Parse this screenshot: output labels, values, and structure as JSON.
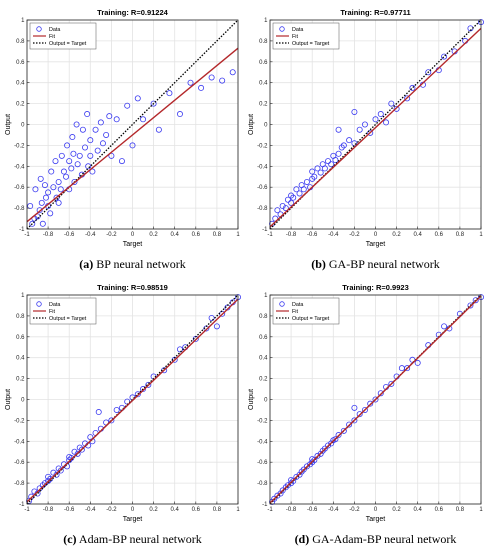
{
  "chart_data": [
    {
      "type": "scatter",
      "title": "Training: R=0.91224",
      "caption_letter": "(a)",
      "caption_text": " BP neural network",
      "xlabel": "Target",
      "ylabel": "Output",
      "xlim": [
        -1,
        1
      ],
      "ylim": [
        -1,
        1
      ],
      "xticks": [
        "-1",
        "-0.8",
        "-0.6",
        "-0.4",
        "-0.2",
        "0",
        "0.2",
        "0.4",
        "0.6",
        "0.8",
        "1"
      ],
      "yticks": [
        "-1",
        "-0.8",
        "-0.6",
        "-0.4",
        "-0.2",
        "0",
        "0.2",
        "0.4",
        "0.6",
        "0.8",
        "1"
      ],
      "grid": true,
      "legend_position": "top-left",
      "legend": [
        "Data",
        "Fit",
        "Output = Target"
      ],
      "fit": {
        "slope": 0.83,
        "intercept": -0.1
      },
      "points": [
        [
          -0.95,
          -0.95
        ],
        [
          -0.93,
          -0.9
        ],
        [
          -0.9,
          -0.88
        ],
        [
          -0.88,
          -0.82
        ],
        [
          -0.86,
          -0.75
        ],
        [
          -0.85,
          -0.95
        ],
        [
          -0.82,
          -0.7
        ],
        [
          -0.8,
          -0.78
        ],
        [
          -0.8,
          -0.65
        ],
        [
          -0.78,
          -0.85
        ],
        [
          -0.75,
          -0.6
        ],
        [
          -0.72,
          -0.7
        ],
        [
          -0.7,
          -0.55
        ],
        [
          -0.7,
          -0.75
        ],
        [
          -0.68,
          -0.62
        ],
        [
          -0.65,
          -0.45
        ],
        [
          -0.63,
          -0.5
        ],
        [
          -0.6,
          -0.35
        ],
        [
          -0.6,
          -0.62
        ],
        [
          -0.58,
          -0.42
        ],
        [
          -0.56,
          -0.28
        ],
        [
          -0.55,
          -0.55
        ],
        [
          -0.52,
          -0.38
        ],
        [
          -0.5,
          -0.3
        ],
        [
          -0.48,
          -0.48
        ],
        [
          -0.45,
          -0.22
        ],
        [
          -0.42,
          -0.4
        ],
        [
          -0.4,
          -0.15
        ],
        [
          -0.4,
          -0.3
        ],
        [
          -0.38,
          -0.45
        ],
        [
          -0.35,
          -0.05
        ],
        [
          -0.33,
          -0.25
        ],
        [
          -0.3,
          0.02
        ],
        [
          -0.28,
          -0.18
        ],
        [
          -0.25,
          -0.1
        ],
        [
          -0.22,
          0.08
        ],
        [
          -0.2,
          -0.3
        ],
        [
          -0.15,
          0.05
        ],
        [
          -0.1,
          -0.35
        ],
        [
          -0.05,
          0.18
        ],
        [
          0.0,
          -0.2
        ],
        [
          0.05,
          0.25
        ],
        [
          0.1,
          0.05
        ],
        [
          0.2,
          0.2
        ],
        [
          0.25,
          -0.05
        ],
        [
          0.35,
          0.3
        ],
        [
          0.45,
          0.1
        ],
        [
          0.55,
          0.4
        ],
        [
          0.65,
          0.35
        ],
        [
          0.75,
          0.45
        ],
        [
          0.85,
          0.42
        ],
        [
          0.95,
          0.5
        ],
        [
          -0.97,
          -0.78
        ],
        [
          -0.92,
          -0.62
        ],
        [
          -0.87,
          -0.52
        ],
        [
          -0.83,
          -0.58
        ],
        [
          -0.77,
          -0.45
        ],
        [
          -0.73,
          -0.35
        ],
        [
          -0.67,
          -0.3
        ],
        [
          -0.62,
          -0.2
        ],
        [
          -0.57,
          -0.12
        ],
        [
          -0.53,
          0.0
        ],
        [
          -0.47,
          -0.05
        ],
        [
          -0.43,
          0.1
        ]
      ]
    },
    {
      "type": "scatter",
      "title": "Training: R=0.97711",
      "caption_letter": "(b)",
      "caption_text": " GA-BP neural network",
      "xlabel": "Target",
      "ylabel": "Output",
      "xlim": [
        -1,
        1
      ],
      "ylim": [
        -1,
        1
      ],
      "xticks": [
        "-1",
        "-0.8",
        "-0.6",
        "-0.4",
        "-0.2",
        "0",
        "0.2",
        "0.4",
        "0.6",
        "0.8",
        "1"
      ],
      "yticks": [
        "-1",
        "-0.8",
        "-0.6",
        "-0.4",
        "-0.2",
        "0",
        "0.2",
        "0.4",
        "0.6",
        "0.8",
        "1"
      ],
      "grid": true,
      "legend_position": "top-left",
      "legend": [
        "Data",
        "Fit",
        "Output = Target"
      ],
      "fit": {
        "slope": 0.95,
        "intercept": -0.03
      },
      "points": [
        [
          -0.98,
          -0.95
        ],
        [
          -0.95,
          -0.9
        ],
        [
          -0.93,
          -0.82
        ],
        [
          -0.9,
          -0.86
        ],
        [
          -0.88,
          -0.78
        ],
        [
          -0.85,
          -0.8
        ],
        [
          -0.83,
          -0.72
        ],
        [
          -0.8,
          -0.75
        ],
        [
          -0.8,
          -0.68
        ],
        [
          -0.78,
          -0.7
        ],
        [
          -0.75,
          -0.62
        ],
        [
          -0.72,
          -0.66
        ],
        [
          -0.7,
          -0.58
        ],
        [
          -0.68,
          -0.62
        ],
        [
          -0.65,
          -0.55
        ],
        [
          -0.62,
          -0.6
        ],
        [
          -0.6,
          -0.52
        ],
        [
          -0.6,
          -0.45
        ],
        [
          -0.58,
          -0.5
        ],
        [
          -0.55,
          -0.42
        ],
        [
          -0.52,
          -0.46
        ],
        [
          -0.5,
          -0.38
        ],
        [
          -0.48,
          -0.42
        ],
        [
          -0.45,
          -0.35
        ],
        [
          -0.42,
          -0.38
        ],
        [
          -0.4,
          -0.3
        ],
        [
          -0.38,
          -0.34
        ],
        [
          -0.35,
          -0.28
        ],
        [
          -0.32,
          -0.22
        ],
        [
          -0.3,
          -0.2
        ],
        [
          -0.25,
          -0.15
        ],
        [
          -0.2,
          -0.18
        ],
        [
          -0.15,
          -0.05
        ],
        [
          -0.1,
          0.0
        ],
        [
          -0.05,
          -0.08
        ],
        [
          0.0,
          0.05
        ],
        [
          0.05,
          0.1
        ],
        [
          0.1,
          0.02
        ],
        [
          0.15,
          0.2
        ],
        [
          0.2,
          0.15
        ],
        [
          0.3,
          0.25
        ],
        [
          0.35,
          0.35
        ],
        [
          0.45,
          0.38
        ],
        [
          0.5,
          0.5
        ],
        [
          0.6,
          0.52
        ],
        [
          0.65,
          0.65
        ],
        [
          0.75,
          0.7
        ],
        [
          0.85,
          0.8
        ],
        [
          0.9,
          0.92
        ],
        [
          1.0,
          0.98
        ],
        [
          -0.35,
          -0.05
        ],
        [
          -0.2,
          0.12
        ]
      ]
    },
    {
      "type": "scatter",
      "title": "Training: R=0.98519",
      "caption_letter": "(c)",
      "caption_text": " Adam-BP neural network",
      "xlabel": "Target",
      "ylabel": "Output",
      "xlim": [
        -1,
        1
      ],
      "ylim": [
        -1,
        1
      ],
      "xticks": [
        "-1",
        "-0.8",
        "-0.6",
        "-0.4",
        "-0.2",
        "0",
        "0.2",
        "0.4",
        "0.6",
        "0.8",
        "1"
      ],
      "yticks": [
        "-1",
        "-0.8",
        "-0.6",
        "-0.4",
        "-0.2",
        "0",
        "0.2",
        "0.4",
        "0.6",
        "0.8",
        "1"
      ],
      "grid": true,
      "legend_position": "top-left",
      "legend": [
        "Data",
        "Fit",
        "Output = Target"
      ],
      "fit": {
        "slope": 0.97,
        "intercept": -0.01
      },
      "points": [
        [
          -0.98,
          -0.97
        ],
        [
          -0.96,
          -0.93
        ],
        [
          -0.93,
          -0.88
        ],
        [
          -0.9,
          -0.9
        ],
        [
          -0.88,
          -0.85
        ],
        [
          -0.85,
          -0.82
        ],
        [
          -0.83,
          -0.8
        ],
        [
          -0.8,
          -0.78
        ],
        [
          -0.8,
          -0.74
        ],
        [
          -0.78,
          -0.76
        ],
        [
          -0.75,
          -0.7
        ],
        [
          -0.72,
          -0.72
        ],
        [
          -0.7,
          -0.66
        ],
        [
          -0.68,
          -0.68
        ],
        [
          -0.65,
          -0.62
        ],
        [
          -0.62,
          -0.64
        ],
        [
          -0.6,
          -0.58
        ],
        [
          -0.6,
          -0.55
        ],
        [
          -0.58,
          -0.56
        ],
        [
          -0.55,
          -0.5
        ],
        [
          -0.52,
          -0.52
        ],
        [
          -0.5,
          -0.46
        ],
        [
          -0.48,
          -0.48
        ],
        [
          -0.45,
          -0.42
        ],
        [
          -0.42,
          -0.44
        ],
        [
          -0.4,
          -0.36
        ],
        [
          -0.38,
          -0.4
        ],
        [
          -0.35,
          -0.32
        ],
        [
          -0.3,
          -0.28
        ],
        [
          -0.25,
          -0.22
        ],
        [
          -0.2,
          -0.2
        ],
        [
          -0.15,
          -0.1
        ],
        [
          -0.1,
          -0.08
        ],
        [
          -0.05,
          -0.02
        ],
        [
          0.0,
          0.02
        ],
        [
          0.05,
          0.05
        ],
        [
          0.1,
          0.1
        ],
        [
          0.15,
          0.14
        ],
        [
          0.2,
          0.22
        ],
        [
          0.3,
          0.28
        ],
        [
          0.4,
          0.38
        ],
        [
          0.45,
          0.48
        ],
        [
          0.5,
          0.5
        ],
        [
          0.6,
          0.58
        ],
        [
          0.7,
          0.68
        ],
        [
          0.75,
          0.78
        ],
        [
          0.85,
          0.82
        ],
        [
          0.9,
          0.88
        ],
        [
          0.95,
          0.93
        ],
        [
          1.0,
          0.98
        ],
        [
          -0.32,
          -0.12
        ],
        [
          0.8,
          0.7
        ]
      ]
    },
    {
      "type": "scatter",
      "title": "Training: R=0.9923",
      "caption_letter": "(d)",
      "caption_text": " GA-Adam-BP neural network",
      "xlabel": "Target",
      "ylabel": "Output",
      "xlim": [
        -1,
        1
      ],
      "ylim": [
        -1,
        1
      ],
      "xticks": [
        "-1",
        "-0.8",
        "-0.6",
        "-0.4",
        "-0.2",
        "0",
        "0.2",
        "0.4",
        "0.6",
        "0.8",
        "1"
      ],
      "yticks": [
        "-1",
        "-0.8",
        "-0.6",
        "-0.4",
        "-0.2",
        "0",
        "0.2",
        "0.4",
        "0.6",
        "0.8",
        "1"
      ],
      "grid": true,
      "legend_position": "top-left",
      "legend": [
        "Data",
        "Fit",
        "Output = Target"
      ],
      "fit": {
        "slope": 0.99,
        "intercept": 0.0
      },
      "points": [
        [
          -0.98,
          -0.98
        ],
        [
          -0.96,
          -0.95
        ],
        [
          -0.93,
          -0.92
        ],
        [
          -0.9,
          -0.9
        ],
        [
          -0.88,
          -0.87
        ],
        [
          -0.85,
          -0.84
        ],
        [
          -0.83,
          -0.82
        ],
        [
          -0.8,
          -0.8
        ],
        [
          -0.8,
          -0.77
        ],
        [
          -0.78,
          -0.78
        ],
        [
          -0.75,
          -0.74
        ],
        [
          -0.72,
          -0.72
        ],
        [
          -0.7,
          -0.69
        ],
        [
          -0.68,
          -0.67
        ],
        [
          -0.65,
          -0.64
        ],
        [
          -0.62,
          -0.62
        ],
        [
          -0.6,
          -0.6
        ],
        [
          -0.6,
          -0.57
        ],
        [
          -0.58,
          -0.58
        ],
        [
          -0.55,
          -0.54
        ],
        [
          -0.52,
          -0.52
        ],
        [
          -0.5,
          -0.49
        ],
        [
          -0.48,
          -0.47
        ],
        [
          -0.45,
          -0.44
        ],
        [
          -0.42,
          -0.42
        ],
        [
          -0.4,
          -0.39
        ],
        [
          -0.38,
          -0.38
        ],
        [
          -0.35,
          -0.34
        ],
        [
          -0.3,
          -0.3
        ],
        [
          -0.25,
          -0.24
        ],
        [
          -0.2,
          -0.2
        ],
        [
          -0.15,
          -0.14
        ],
        [
          -0.1,
          -0.1
        ],
        [
          -0.05,
          -0.04
        ],
        [
          0.0,
          0.0
        ],
        [
          0.05,
          0.06
        ],
        [
          0.1,
          0.12
        ],
        [
          0.15,
          0.15
        ],
        [
          0.2,
          0.22
        ],
        [
          0.3,
          0.3
        ],
        [
          0.35,
          0.38
        ],
        [
          0.4,
          0.35
        ],
        [
          0.5,
          0.52
        ],
        [
          0.6,
          0.62
        ],
        [
          0.65,
          0.7
        ],
        [
          0.7,
          0.68
        ],
        [
          0.8,
          0.82
        ],
        [
          0.9,
          0.9
        ],
        [
          0.95,
          0.95
        ],
        [
          1.0,
          0.98
        ],
        [
          -0.2,
          -0.08
        ],
        [
          0.25,
          0.3
        ]
      ]
    }
  ]
}
